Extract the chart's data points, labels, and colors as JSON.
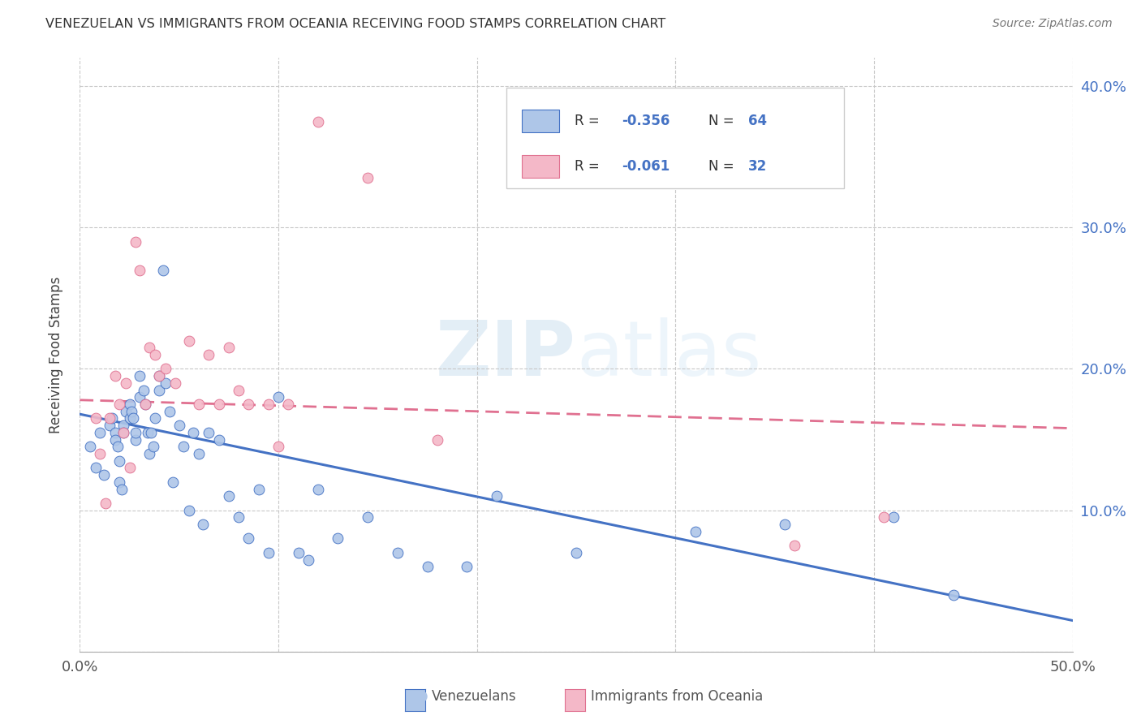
{
  "title": "VENEZUELAN VS IMMIGRANTS FROM OCEANIA RECEIVING FOOD STAMPS CORRELATION CHART",
  "source": "Source: ZipAtlas.com",
  "ylabel": "Receiving Food Stamps",
  "xlim": [
    0.0,
    0.5
  ],
  "ylim": [
    0.0,
    0.42
  ],
  "yticks_right": [
    0.1,
    0.2,
    0.3,
    0.4
  ],
  "ytick_labels_right": [
    "10.0%",
    "20.0%",
    "30.0%",
    "40.0%"
  ],
  "xticks": [
    0.0,
    0.1,
    0.2,
    0.3,
    0.4,
    0.5
  ],
  "blue_color": "#aec6e8",
  "blue_edge_color": "#4472c4",
  "pink_color": "#f4b8c8",
  "pink_edge_color": "#e07090",
  "blue_line_color": "#4472c4",
  "pink_line_color": "#e07090",
  "legend_label1": "Venezuelans",
  "legend_label2": "Immigrants from Oceania",
  "legend_r1": "R = ",
  "legend_rv1": "-0.356",
  "legend_n1": "N = ",
  "legend_nv1": "64",
  "legend_r2": "R = ",
  "legend_rv2": "-0.061",
  "legend_n2": "N = ",
  "legend_nv2": "32",
  "watermark_zip": "ZIP",
  "watermark_atlas": "atlas",
  "venezuelan_x": [
    0.005,
    0.008,
    0.01,
    0.012,
    0.015,
    0.016,
    0.018,
    0.018,
    0.019,
    0.02,
    0.02,
    0.021,
    0.022,
    0.022,
    0.023,
    0.025,
    0.025,
    0.026,
    0.027,
    0.028,
    0.028,
    0.03,
    0.03,
    0.032,
    0.033,
    0.034,
    0.035,
    0.036,
    0.037,
    0.038,
    0.04,
    0.04,
    0.042,
    0.043,
    0.045,
    0.047,
    0.05,
    0.052,
    0.055,
    0.057,
    0.06,
    0.062,
    0.065,
    0.07,
    0.075,
    0.08,
    0.085,
    0.09,
    0.095,
    0.1,
    0.11,
    0.115,
    0.12,
    0.13,
    0.145,
    0.16,
    0.175,
    0.195,
    0.21,
    0.25,
    0.31,
    0.355,
    0.41,
    0.44
  ],
  "venezuelan_y": [
    0.145,
    0.13,
    0.155,
    0.125,
    0.16,
    0.165,
    0.155,
    0.15,
    0.145,
    0.135,
    0.12,
    0.115,
    0.16,
    0.155,
    0.17,
    0.165,
    0.175,
    0.17,
    0.165,
    0.15,
    0.155,
    0.195,
    0.18,
    0.185,
    0.175,
    0.155,
    0.14,
    0.155,
    0.145,
    0.165,
    0.195,
    0.185,
    0.27,
    0.19,
    0.17,
    0.12,
    0.16,
    0.145,
    0.1,
    0.155,
    0.14,
    0.09,
    0.155,
    0.15,
    0.11,
    0.095,
    0.08,
    0.115,
    0.07,
    0.18,
    0.07,
    0.065,
    0.115,
    0.08,
    0.095,
    0.07,
    0.06,
    0.06,
    0.11,
    0.07,
    0.085,
    0.09,
    0.095,
    0.04
  ],
  "oceania_x": [
    0.008,
    0.01,
    0.013,
    0.015,
    0.018,
    0.02,
    0.022,
    0.023,
    0.025,
    0.028,
    0.03,
    0.033,
    0.035,
    0.038,
    0.04,
    0.043,
    0.048,
    0.055,
    0.06,
    0.065,
    0.07,
    0.075,
    0.08,
    0.085,
    0.095,
    0.1,
    0.105,
    0.12,
    0.145,
    0.18,
    0.36,
    0.405
  ],
  "oceania_y": [
    0.165,
    0.14,
    0.105,
    0.165,
    0.195,
    0.175,
    0.155,
    0.19,
    0.13,
    0.29,
    0.27,
    0.175,
    0.215,
    0.21,
    0.195,
    0.2,
    0.19,
    0.22,
    0.175,
    0.21,
    0.175,
    0.215,
    0.185,
    0.175,
    0.175,
    0.145,
    0.175,
    0.375,
    0.335,
    0.15,
    0.075,
    0.095
  ],
  "blue_trend_x0": 0.0,
  "blue_trend_y0": 0.168,
  "blue_trend_x1": 0.5,
  "blue_trend_y1": 0.022,
  "pink_trend_x0": 0.0,
  "pink_trend_y0": 0.178,
  "pink_trend_x1": 0.5,
  "pink_trend_y1": 0.158
}
